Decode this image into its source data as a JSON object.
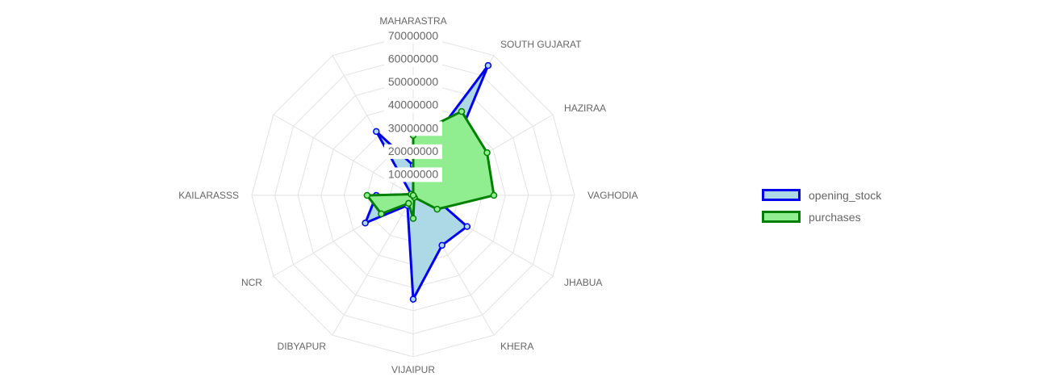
{
  "chart_data": {
    "type": "radar",
    "categories": [
      "MAHARASTRA",
      "SOUTH GUJARAT",
      "HAZIRAA",
      "VAGHODIA",
      "JHABUA",
      "KHERA",
      "VIJAIPUR",
      "DIBYAPUR",
      "NCR",
      "KAILARASSS",
      "",
      ""
    ],
    "r_ticks": [
      "10000000",
      "20000000",
      "30000000",
      "40000000",
      "50000000",
      "60000000",
      "70000000"
    ],
    "r_range": [
      0,
      70000000
    ],
    "series": [
      {
        "name": "opening_stock",
        "color": "#0000ee",
        "fill": "#add8e6",
        "values": [
          13000000,
          65000000,
          14000000,
          8000000,
          27000000,
          25000000,
          45000000,
          5000000,
          24000000,
          16000000,
          1000000,
          32000000
        ]
      },
      {
        "name": "purchases",
        "color": "#008000",
        "fill": "#90ee90",
        "values": [
          26000000,
          42000000,
          37000000,
          35000000,
          12000000,
          1000000,
          10000000,
          4000000,
          16000000,
          20000000,
          1000000,
          0
        ]
      }
    ],
    "legend": "right"
  }
}
